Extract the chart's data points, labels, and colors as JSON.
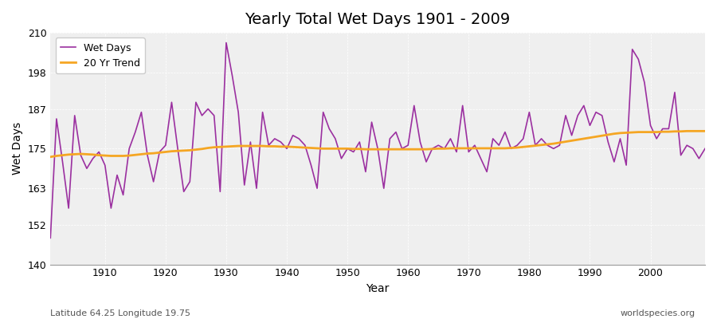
{
  "title": "Yearly Total Wet Days 1901 - 2009",
  "xlabel": "Year",
  "ylabel": "Wet Days",
  "footnote_left": "Latitude 64.25 Longitude 19.75",
  "footnote_right": "worldspecies.org",
  "legend_wet": "Wet Days",
  "legend_trend": "20 Yr Trend",
  "color_wet": "#9b30a0",
  "color_trend": "#f5a623",
  "ylim": [
    140,
    210
  ],
  "yticks": [
    140,
    152,
    163,
    175,
    187,
    198,
    210
  ],
  "xlim": [
    1901,
    2009
  ],
  "bg_color": "#efefef",
  "fig_color": "#ffffff",
  "years": [
    1901,
    1902,
    1903,
    1904,
    1905,
    1906,
    1907,
    1908,
    1909,
    1910,
    1911,
    1912,
    1913,
    1914,
    1915,
    1916,
    1917,
    1918,
    1919,
    1920,
    1921,
    1922,
    1923,
    1924,
    1925,
    1926,
    1927,
    1928,
    1929,
    1930,
    1931,
    1932,
    1933,
    1934,
    1935,
    1936,
    1937,
    1938,
    1939,
    1940,
    1941,
    1942,
    1943,
    1944,
    1945,
    1946,
    1947,
    1948,
    1949,
    1950,
    1951,
    1952,
    1953,
    1954,
    1955,
    1956,
    1957,
    1958,
    1959,
    1960,
    1961,
    1962,
    1963,
    1964,
    1965,
    1966,
    1967,
    1968,
    1969,
    1970,
    1971,
    1972,
    1973,
    1974,
    1975,
    1976,
    1977,
    1978,
    1979,
    1980,
    1981,
    1982,
    1983,
    1984,
    1985,
    1986,
    1987,
    1988,
    1989,
    1990,
    1991,
    1992,
    1993,
    1994,
    1995,
    1996,
    1997,
    1998,
    1999,
    2000,
    2001,
    2002,
    2003,
    2004,
    2005,
    2006,
    2007,
    2008,
    2009
  ],
  "wet_days": [
    148,
    184,
    171,
    157,
    185,
    173,
    169,
    172,
    174,
    170,
    157,
    167,
    161,
    175,
    180,
    186,
    173,
    165,
    174,
    176,
    189,
    175,
    162,
    165,
    189,
    185,
    187,
    185,
    162,
    207,
    197,
    186,
    164,
    177,
    163,
    186,
    176,
    178,
    177,
    175,
    179,
    178,
    176,
    170,
    163,
    186,
    181,
    178,
    172,
    175,
    174,
    177,
    168,
    183,
    175,
    163,
    178,
    180,
    175,
    176,
    188,
    177,
    171,
    175,
    176,
    175,
    178,
    174,
    188,
    174,
    176,
    172,
    168,
    178,
    176,
    180,
    175,
    176,
    178,
    186,
    176,
    178,
    176,
    175,
    176,
    185,
    179,
    185,
    188,
    182,
    186,
    185,
    177,
    171,
    178,
    170,
    205,
    202,
    195,
    182,
    178,
    181,
    181,
    192,
    173,
    176,
    175,
    172,
    175
  ],
  "trend": [
    172.5,
    172.8,
    173.0,
    173.2,
    173.3,
    173.4,
    173.3,
    173.2,
    173.0,
    172.9,
    172.8,
    172.8,
    172.8,
    172.9,
    173.1,
    173.3,
    173.5,
    173.6,
    173.8,
    174.0,
    174.2,
    174.3,
    174.4,
    174.5,
    174.7,
    174.9,
    175.2,
    175.4,
    175.5,
    175.6,
    175.7,
    175.8,
    175.8,
    175.8,
    175.8,
    175.8,
    175.7,
    175.7,
    175.6,
    175.6,
    175.5,
    175.4,
    175.3,
    175.2,
    175.1,
    175.0,
    175.0,
    175.0,
    175.0,
    175.0,
    174.9,
    174.9,
    174.8,
    174.8,
    174.8,
    174.8,
    174.8,
    174.8,
    174.8,
    174.8,
    174.8,
    174.8,
    174.8,
    174.9,
    175.0,
    175.0,
    175.1,
    175.1,
    175.1,
    175.1,
    175.1,
    175.1,
    175.1,
    175.1,
    175.1,
    175.1,
    175.2,
    175.3,
    175.5,
    175.7,
    175.9,
    176.1,
    176.3,
    176.5,
    176.8,
    177.1,
    177.4,
    177.7,
    178.0,
    178.3,
    178.6,
    178.9,
    179.2,
    179.5,
    179.7,
    179.8,
    179.9,
    180.0,
    180.0,
    180.0,
    180.0,
    180.1,
    180.1,
    180.2,
    180.2,
    180.3,
    180.3,
    180.3,
    180.3
  ]
}
